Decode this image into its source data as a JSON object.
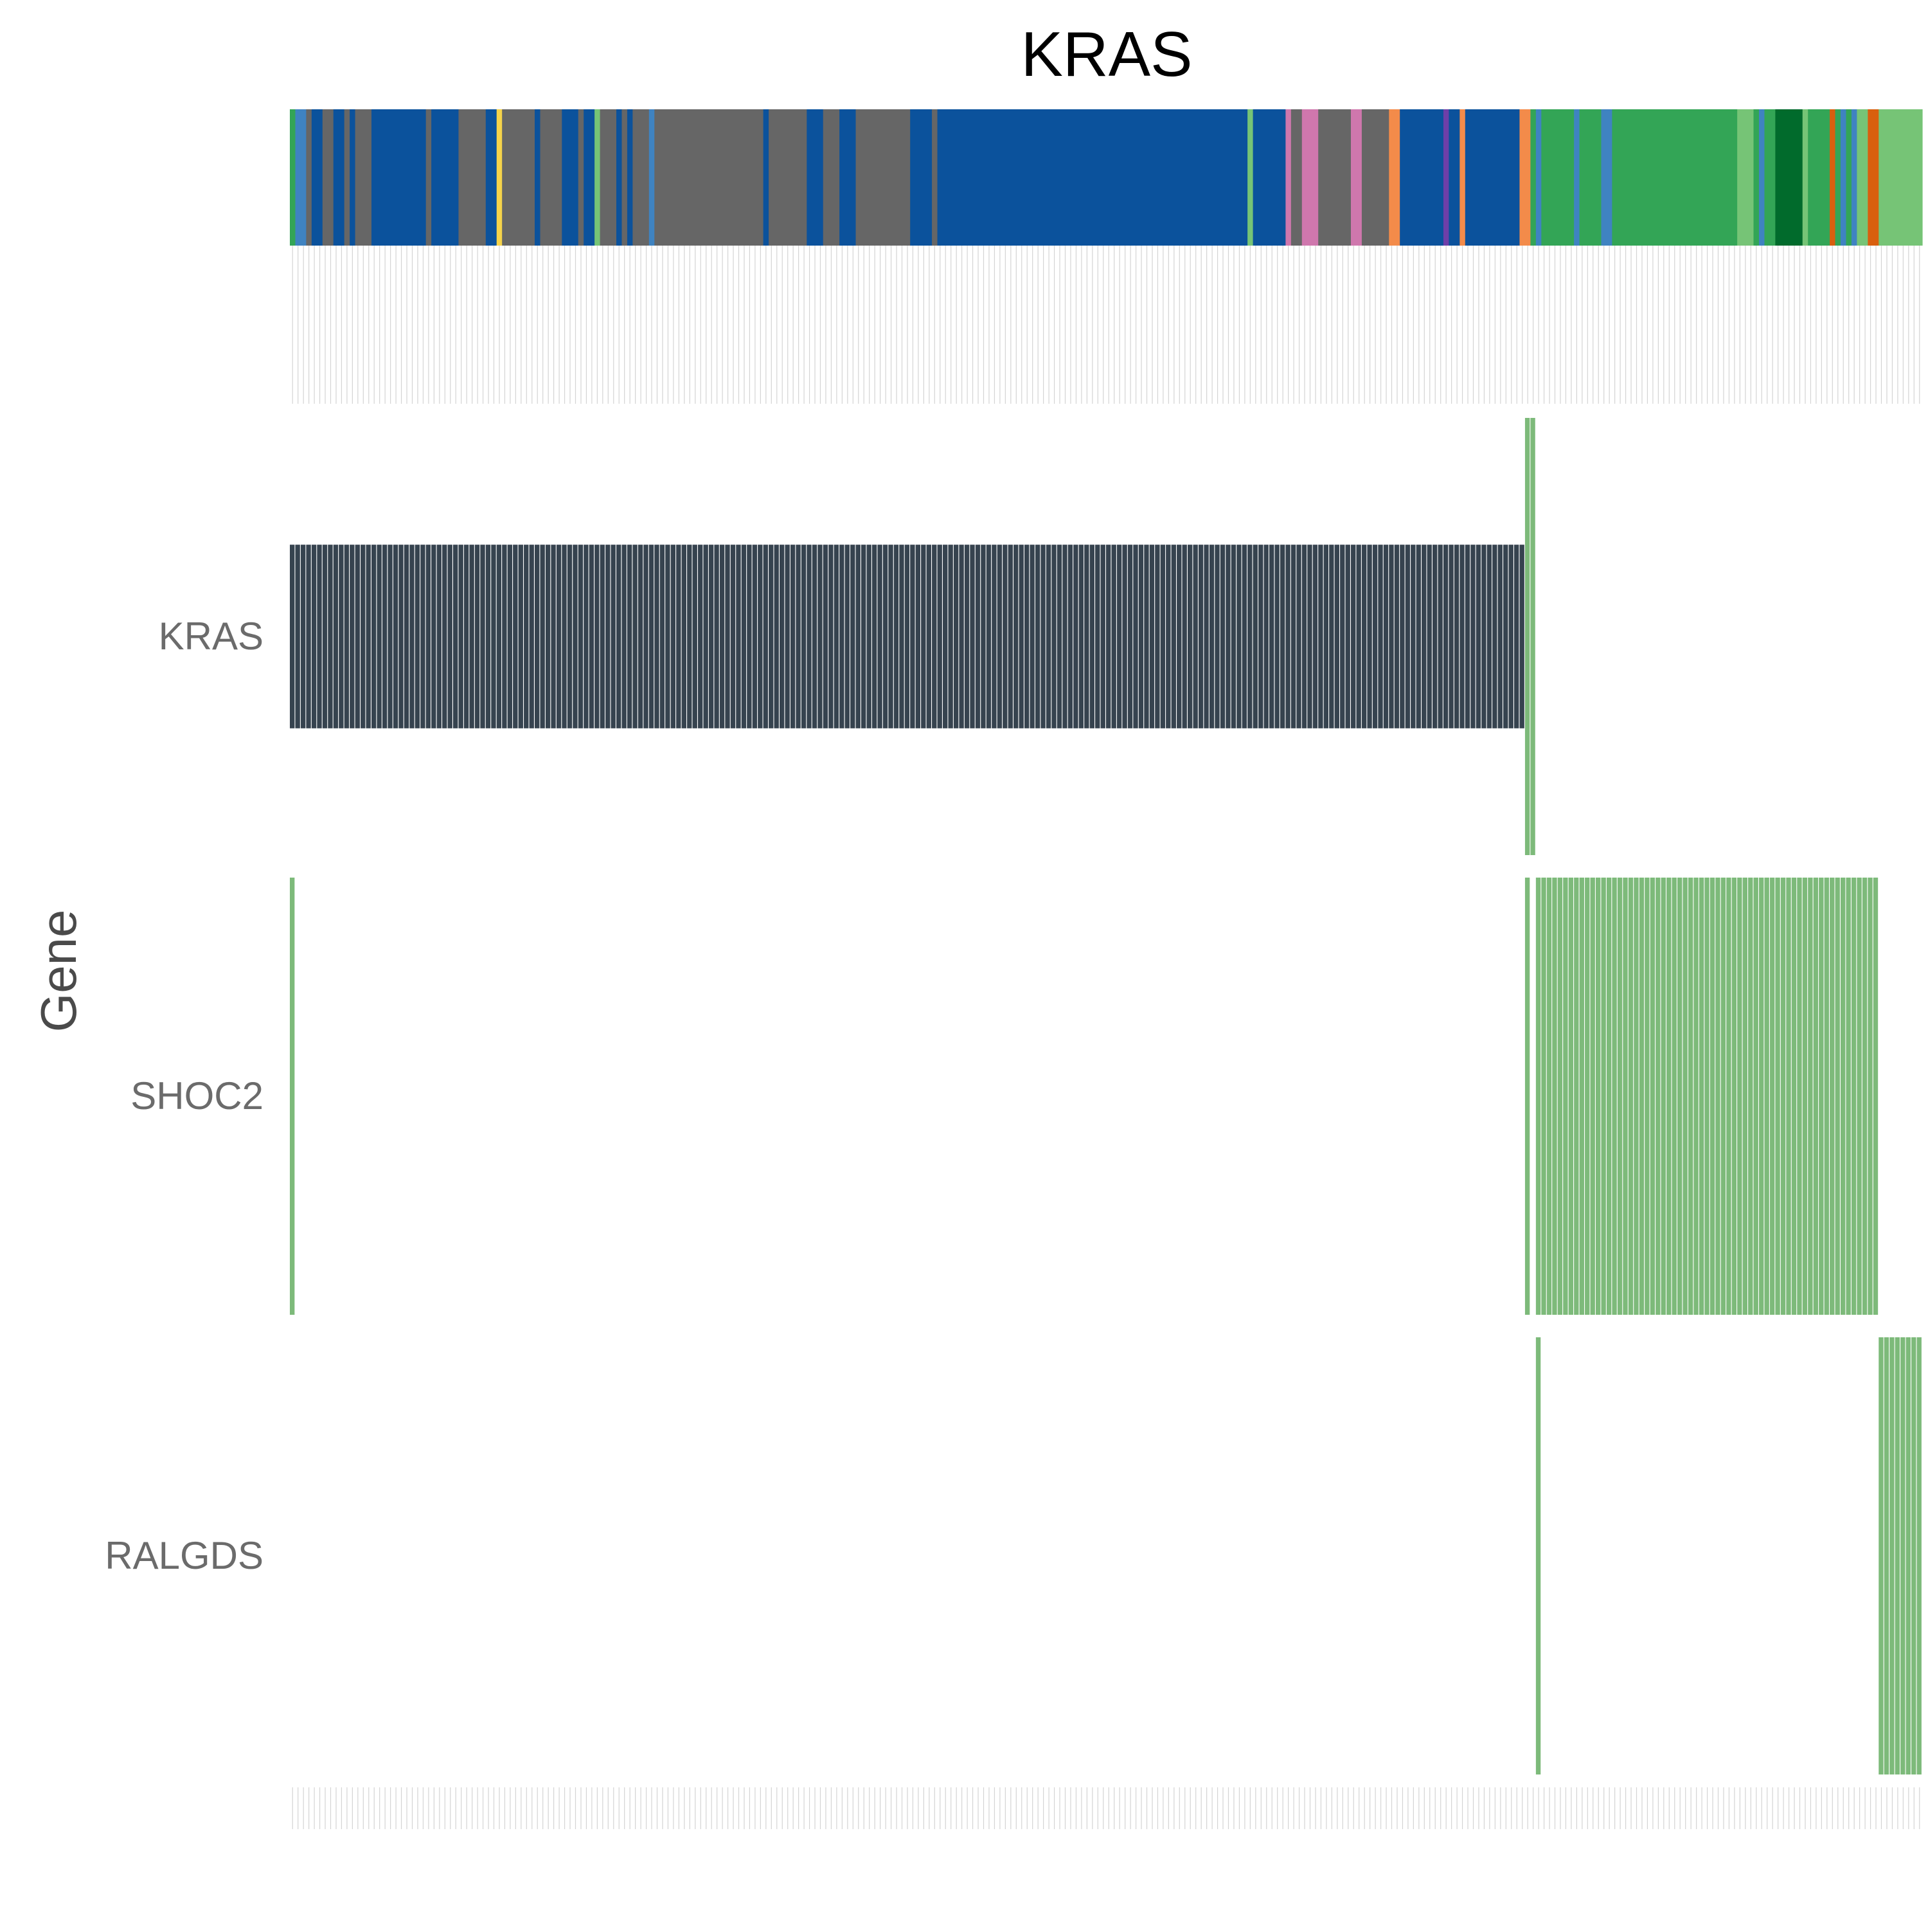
{
  "chart_data": {
    "type": "heatmap",
    "title": "KRAS",
    "ylabel": "Gene",
    "xlabel": "",
    "n_samples": 300,
    "genes": [
      "KRAS",
      "SHOC2",
      "RALGDS"
    ],
    "grid": false,
    "legend": "none",
    "colors": {
      "kras_hit": "#36434f",
      "hit_green": "#7dba7a",
      "annotation_empty_line": "#d4d4d4",
      "background": "#ffffff"
    },
    "annotation_palette": {
      "blue": "#0b529c",
      "gray": "#666666",
      "green": "#33a556",
      "light_green": "#76c476",
      "dark_green": "#016b2c",
      "pink": "#cf77ad",
      "orange": "#f38b4a",
      "dark_orange": "#d95f0e",
      "mid_blue": "#3f83c1",
      "purple": "#6e3fa8",
      "yellow": "#f5d34a"
    },
    "annotation_segments": [
      {
        "start": 0,
        "end": 1,
        "color": "green"
      },
      {
        "start": 1,
        "end": 3,
        "color": "mid_blue"
      },
      {
        "start": 3,
        "end": 4,
        "color": "gray"
      },
      {
        "start": 4,
        "end": 6,
        "color": "blue"
      },
      {
        "start": 6,
        "end": 8,
        "color": "gray"
      },
      {
        "start": 8,
        "end": 10,
        "color": "blue"
      },
      {
        "start": 10,
        "end": 11,
        "color": "gray"
      },
      {
        "start": 11,
        "end": 12,
        "color": "blue"
      },
      {
        "start": 12,
        "end": 15,
        "color": "gray"
      },
      {
        "start": 15,
        "end": 16,
        "color": "blue"
      },
      {
        "start": 16,
        "end": 25,
        "color": "blue"
      },
      {
        "start": 25,
        "end": 26,
        "color": "gray"
      },
      {
        "start": 26,
        "end": 31,
        "color": "blue"
      },
      {
        "start": 31,
        "end": 36,
        "color": "gray"
      },
      {
        "start": 36,
        "end": 38,
        "color": "blue"
      },
      {
        "start": 38,
        "end": 39,
        "color": "yellow"
      },
      {
        "start": 39,
        "end": 45,
        "color": "gray"
      },
      {
        "start": 45,
        "end": 46,
        "color": "blue"
      },
      {
        "start": 46,
        "end": 50,
        "color": "gray"
      },
      {
        "start": 50,
        "end": 53,
        "color": "blue"
      },
      {
        "start": 53,
        "end": 54,
        "color": "gray"
      },
      {
        "start": 54,
        "end": 56,
        "color": "blue"
      },
      {
        "start": 56,
        "end": 57,
        "color": "light_green"
      },
      {
        "start": 57,
        "end": 60,
        "color": "gray"
      },
      {
        "start": 60,
        "end": 61,
        "color": "blue"
      },
      {
        "start": 61,
        "end": 62,
        "color": "gray"
      },
      {
        "start": 62,
        "end": 63,
        "color": "blue"
      },
      {
        "start": 63,
        "end": 66,
        "color": "gray"
      },
      {
        "start": 66,
        "end": 67,
        "color": "mid_blue"
      },
      {
        "start": 67,
        "end": 72,
        "color": "gray"
      },
      {
        "start": 72,
        "end": 87,
        "color": "gray"
      },
      {
        "start": 87,
        "end": 88,
        "color": "blue"
      },
      {
        "start": 88,
        "end": 95,
        "color": "gray"
      },
      {
        "start": 95,
        "end": 98,
        "color": "blue"
      },
      {
        "start": 98,
        "end": 101,
        "color": "gray"
      },
      {
        "start": 101,
        "end": 104,
        "color": "blue"
      },
      {
        "start": 104,
        "end": 114,
        "color": "gray"
      },
      {
        "start": 114,
        "end": 118,
        "color": "blue"
      },
      {
        "start": 118,
        "end": 119,
        "color": "gray"
      },
      {
        "start": 119,
        "end": 176,
        "color": "blue"
      },
      {
        "start": 176,
        "end": 177,
        "color": "light_green"
      },
      {
        "start": 177,
        "end": 183,
        "color": "blue"
      },
      {
        "start": 183,
        "end": 184,
        "color": "pink"
      },
      {
        "start": 184,
        "end": 186,
        "color": "gray"
      },
      {
        "start": 186,
        "end": 189,
        "color": "pink"
      },
      {
        "start": 189,
        "end": 195,
        "color": "gray"
      },
      {
        "start": 195,
        "end": 197,
        "color": "pink"
      },
      {
        "start": 197,
        "end": 202,
        "color": "gray"
      },
      {
        "start": 202,
        "end": 204,
        "color": "orange"
      },
      {
        "start": 204,
        "end": 206,
        "color": "blue"
      },
      {
        "start": 206,
        "end": 212,
        "color": "blue"
      },
      {
        "start": 212,
        "end": 213,
        "color": "purple"
      },
      {
        "start": 213,
        "end": 215,
        "color": "blue"
      },
      {
        "start": 215,
        "end": 216,
        "color": "orange"
      },
      {
        "start": 216,
        "end": 226,
        "color": "blue"
      },
      {
        "start": 226,
        "end": 228,
        "color": "orange"
      },
      {
        "start": 228,
        "end": 229,
        "color": "green"
      },
      {
        "start": 229,
        "end": 230,
        "color": "mid_blue"
      },
      {
        "start": 230,
        "end": 236,
        "color": "green"
      },
      {
        "start": 236,
        "end": 237,
        "color": "mid_blue"
      },
      {
        "start": 237,
        "end": 241,
        "color": "green"
      },
      {
        "start": 241,
        "end": 243,
        "color": "mid_blue"
      },
      {
        "start": 243,
        "end": 266,
        "color": "green"
      },
      {
        "start": 266,
        "end": 269,
        "color": "light_green"
      },
      {
        "start": 269,
        "end": 270,
        "color": "green"
      },
      {
        "start": 270,
        "end": 271,
        "color": "mid_blue"
      },
      {
        "start": 271,
        "end": 273,
        "color": "green"
      },
      {
        "start": 273,
        "end": 278,
        "color": "dark_green"
      },
      {
        "start": 278,
        "end": 279,
        "color": "light_green"
      },
      {
        "start": 279,
        "end": 283,
        "color": "green"
      },
      {
        "start": 283,
        "end": 284,
        "color": "dark_orange"
      },
      {
        "start": 284,
        "end": 285,
        "color": "green"
      },
      {
        "start": 285,
        "end": 286,
        "color": "mid_blue"
      },
      {
        "start": 286,
        "end": 287,
        "color": "green"
      },
      {
        "start": 287,
        "end": 288,
        "color": "mid_blue"
      },
      {
        "start": 288,
        "end": 290,
        "color": "light_green"
      },
      {
        "start": 290,
        "end": 292,
        "color": "dark_orange"
      },
      {
        "start": 292,
        "end": 300,
        "color": "light_green"
      }
    ],
    "hits": [
      {
        "gene": "KRAS",
        "start": 0,
        "end": 227,
        "color": "kras_hit",
        "row_fraction": 0.42
      },
      {
        "gene": "KRAS",
        "start": 227,
        "end": 229,
        "color": "hit_green",
        "row_fraction": 1.0
      },
      {
        "gene": "SHOC2",
        "start": 0,
        "end": 1,
        "color": "hit_green",
        "row_fraction": 1.0
      },
      {
        "gene": "SHOC2",
        "start": 227,
        "end": 228,
        "color": "hit_green",
        "row_fraction": 1.0
      },
      {
        "gene": "SHOC2",
        "start": 229,
        "end": 292,
        "color": "hit_green",
        "row_fraction": 1.0
      },
      {
        "gene": "RALGDS",
        "start": 229,
        "end": 230,
        "color": "hit_green",
        "row_fraction": 1.0
      },
      {
        "gene": "RALGDS",
        "start": 292,
        "end": 300,
        "color": "hit_green",
        "row_fraction": 1.0
      }
    ]
  }
}
